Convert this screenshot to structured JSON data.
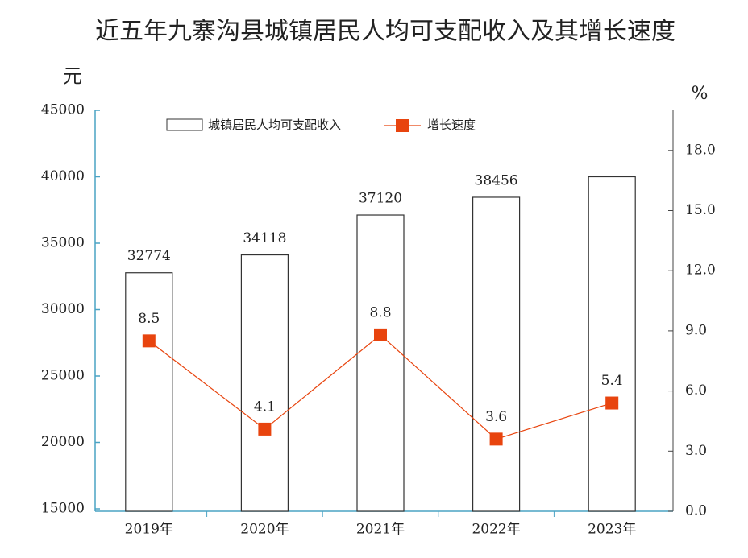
{
  "chart_data": {
    "type": "bar-line",
    "title": "近五年九寨沟县城镇居民人均可支配收入及其增长速度",
    "y_label": "元",
    "y2_label": "%",
    "categories": [
      "2019年",
      "2020年",
      "2021年",
      "2022年",
      "2023年"
    ],
    "series": [
      {
        "name": "城镇居民人均可支配收入",
        "type": "bar",
        "color": "#ffffff",
        "edge_color": "#333333",
        "values": [
          32774,
          34118,
          37120,
          38456,
          40000
        ],
        "value_labels": [
          "32774",
          "34118",
          "37120",
          "38456",
          null
        ]
      },
      {
        "name": "增长速度",
        "type": "line",
        "axis": "y2",
        "color": "#e8440e",
        "values": [
          8.5,
          4.1,
          8.8,
          3.6,
          5.4
        ]
      }
    ],
    "ylim": [
      15000,
      45000
    ],
    "yticks": [
      15000,
      20000,
      25000,
      30000,
      35000,
      40000,
      45000
    ],
    "y2lim": [
      0,
      20
    ],
    "y2ticks": [
      {
        "value": 0,
        "label": "0.0"
      },
      {
        "value": 3,
        "label": "3.0"
      },
      {
        "value": 6,
        "label": "6.0"
      },
      {
        "value": 9,
        "label": "9.0"
      },
      {
        "value": 12,
        "label": "12.0"
      },
      {
        "value": 15,
        "label": "15.0"
      },
      {
        "value": 18,
        "label": "18.0"
      }
    ],
    "axis_color": "#4aa3c4",
    "grid": false
  }
}
